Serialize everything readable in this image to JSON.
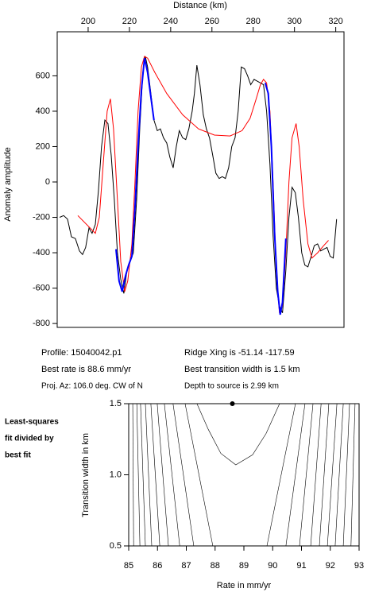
{
  "chart_data": [
    {
      "type": "line",
      "xlabel": "Distance (km)",
      "ylabel": "Anomaly amplitude",
      "xlim": [
        185,
        324
      ],
      "xticks": [
        200,
        220,
        240,
        260,
        280,
        300,
        320
      ],
      "ylim": [
        -822,
        849
      ],
      "yticks": [
        -800,
        -600,
        -400,
        -200,
        0,
        200,
        400,
        600
      ],
      "series": [
        {
          "color": "#000000",
          "x": [
            186.2,
            188.1,
            190.0,
            191.9,
            193.8,
            195.8,
            197.3,
            198.8,
            200.4,
            201.9,
            203.5,
            205.0,
            206.5,
            208.1,
            209.6,
            211.2,
            212.7,
            214.2,
            215.8,
            217.3,
            218.8,
            220.4,
            221.9,
            223.5,
            225.0,
            226.5,
            227.7,
            228.8,
            230.4,
            231.9,
            233.5,
            235.0,
            236.5,
            238.1,
            239.6,
            241.2,
            242.7,
            244.2,
            245.8,
            247.3,
            248.8,
            250.4,
            251.5,
            252.7,
            254.2,
            255.8,
            257.3,
            258.8,
            260.4,
            261.9,
            263.5,
            265.0,
            266.5,
            268.1,
            269.6,
            271.2,
            272.7,
            274.2,
            275.8,
            277.3,
            278.8,
            280.4,
            281.9,
            283.5,
            285.0,
            286.5,
            288.1,
            289.6,
            291.2,
            292.7,
            294.2,
            295.8,
            297.3,
            298.8,
            300.4,
            301.9,
            303.5,
            305.0,
            306.5,
            308.1,
            309.6,
            311.2,
            312.7,
            314.2,
            315.8,
            317.3,
            318.8,
            320.4
          ],
          "values": [
            -200,
            -190,
            -210,
            -310,
            -320,
            -390,
            -410,
            -370,
            -260,
            -290,
            -240,
            -50,
            200,
            350,
            330,
            150,
            -100,
            -400,
            -550,
            -630,
            -500,
            -450,
            -400,
            -100,
            300,
            620,
            710,
            650,
            500,
            350,
            290,
            300,
            250,
            220,
            140,
            80,
            200,
            290,
            250,
            240,
            300,
            400,
            500,
            660,
            550,
            380,
            300,
            250,
            150,
            50,
            20,
            30,
            20,
            80,
            200,
            250,
            400,
            650,
            640,
            600,
            550,
            580,
            570,
            560,
            550,
            400,
            100,
            -300,
            -600,
            -700,
            -740,
            -500,
            -200,
            -30,
            -60,
            -200,
            -400,
            -470,
            -480,
            -420,
            -360,
            -350,
            -390,
            -380,
            -370,
            -420,
            -430,
            -210
          ]
        },
        {
          "color": "#ff0000",
          "x": [
            195.0,
            203.5,
            205.4,
            207.3,
            209.2,
            210.8,
            212.3,
            214.2,
            215.8,
            217.7,
            219.2,
            221.2,
            222.7,
            224.2,
            225.8,
            227.3,
            228.8,
            232.3,
            238.1,
            245.8,
            253.5,
            261.2,
            268.8,
            274.6,
            278.5,
            281.2,
            283.5,
            285.0,
            286.5,
            288.1,
            289.6,
            291.2,
            292.7,
            294.2,
            295.8,
            297.3,
            298.8,
            300.8,
            302.3,
            304.2,
            306.5,
            308.5,
            311.2,
            314.2,
            316.5
          ],
          "values": [
            -190,
            -290,
            -200,
            100,
            400,
            470,
            300,
            -100,
            -450,
            -620,
            -560,
            -350,
            0,
            400,
            650,
            710,
            700,
            620,
            500,
            380,
            300,
            265,
            260,
            290,
            360,
            460,
            550,
            580,
            560,
            400,
            0,
            -500,
            -740,
            -700,
            -400,
            0,
            250,
            330,
            200,
            -100,
            -350,
            -430,
            -400,
            -360,
            -330
          ]
        },
        {
          "color": "#0000ff",
          "x": [
            213.5,
            215.0,
            216.5,
            218.1,
            219.6,
            221.2,
            222.7,
            224.2,
            225.8,
            227.3,
            228.8,
            230.4,
            231.9,
            null,
            285.8,
            287.3,
            288.8,
            290.4,
            291.9,
            293.1,
            294.2,
            295.8
          ],
          "values": [
            -380,
            -560,
            -620,
            -530,
            -470,
            -420,
            -150,
            200,
            520,
            700,
            620,
            480,
            350,
            null,
            560,
            500,
            200,
            -300,
            -620,
            -750,
            -680,
            -320
          ]
        }
      ]
    },
    {
      "type": "contour",
      "xlabel": "Rate in mm/yr",
      "ylabel": "Transition width in km",
      "xlim": [
        85,
        93
      ],
      "xticks": [
        85,
        86,
        87,
        88,
        89,
        90,
        91,
        92,
        93
      ],
      "ylim": [
        0.5,
        1.5
      ],
      "yticks": [
        0.5,
        {
          "value": 1,
          "label": "1.0"
        },
        1.5
      ],
      "color": "#000000",
      "contours": [
        {
          "x": [
            85.14,
            85.17
          ],
          "y": [
            1.5,
            0.5
          ]
        },
        {
          "x": [
            85.28,
            85.39
          ],
          "y": [
            1.5,
            0.5
          ]
        },
        {
          "x": [
            85.41,
            85.58
          ],
          "y": [
            1.5,
            0.5
          ]
        },
        {
          "x": [
            85.58,
            85.8
          ],
          "y": [
            1.5,
            0.5
          ]
        },
        {
          "x": [
            85.77,
            86.08
          ],
          "y": [
            1.5,
            0.5
          ]
        },
        {
          "x": [
            85.99,
            86.38
          ],
          "y": [
            1.5,
            0.5
          ]
        },
        {
          "x": [
            86.24,
            86.77
          ],
          "y": [
            1.5,
            0.5
          ]
        },
        {
          "x": [
            86.54,
            87.26
          ],
          "y": [
            1.5,
            0.5
          ]
        },
        {
          "x": [
            86.96,
            87.92
          ],
          "y": [
            1.5,
            0.5
          ]
        },
        {
          "x": [
            87.37,
            87.76,
            88.2,
            88.72,
            89.3,
            89.77,
            90.24
          ],
          "y": [
            1.5,
            1.32,
            1.15,
            1.07,
            1.14,
            1.29,
            1.5
          ]
        },
        {
          "x": [
            90.79,
            89.8
          ],
          "y": [
            1.5,
            0.5
          ]
        },
        {
          "x": [
            91.12,
            90.46
          ],
          "y": [
            1.5,
            0.5
          ]
        },
        {
          "x": [
            91.4,
            90.93
          ],
          "y": [
            1.5,
            0.5
          ]
        },
        {
          "x": [
            91.68,
            91.32
          ],
          "y": [
            1.5,
            0.5
          ]
        },
        {
          "x": [
            91.95,
            91.62
          ],
          "y": [
            1.5,
            0.5
          ]
        },
        {
          "x": [
            92.23,
            91.9
          ],
          "y": [
            1.5,
            0.5
          ]
        },
        {
          "x": [
            92.45,
            92.17
          ],
          "y": [
            1.5,
            0.5
          ]
        },
        {
          "x": [
            92.67,
            92.45
          ],
          "y": [
            1.5,
            0.5
          ]
        },
        {
          "x": [
            92.86,
            92.72
          ],
          "y": [
            1.5,
            0.5
          ]
        }
      ],
      "best": {
        "x": 88.6,
        "y": 1.5
      }
    }
  ],
  "info": {
    "profile": "Profile: 15040042.p1",
    "ridge": "Ridge Xing is -51.14 -117.59",
    "rate": "Best rate is 88.6 mm/yr",
    "width": "Best transition width is 1.5 km",
    "azimuth": "Proj. Az: 106.0 deg. CW of N",
    "depth": "Depth to source is   2.99 km"
  },
  "note": [
    "Least-squares",
    "fit divided by",
    "best fit"
  ]
}
